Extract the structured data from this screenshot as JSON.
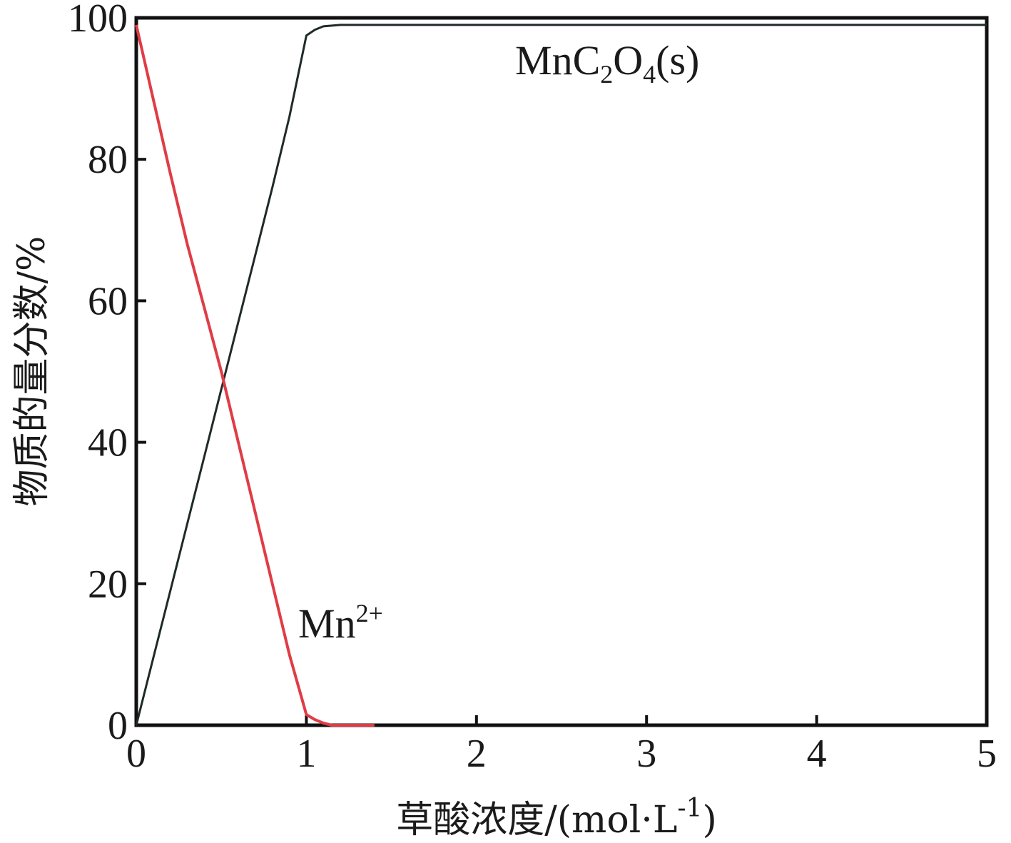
{
  "chart_data": {
    "type": "line",
    "xlabel_main": "草酸浓度/(mol·L",
    "xlabel_sup": "-1",
    "xlabel_end": ")",
    "ylabel": "物质的量分数/%",
    "xlim": [
      0,
      5
    ],
    "ylim": [
      0,
      100
    ],
    "x_ticks": [
      "0",
      "1",
      "2",
      "3",
      "4",
      "5"
    ],
    "y_ticks": [
      "0",
      "20",
      "40",
      "60",
      "80",
      "100"
    ],
    "grid": false,
    "series": [
      {
        "name": "MnC2O4(s)",
        "color": "#1f2a2a",
        "x": [
          0,
          0.1,
          0.2,
          0.3,
          0.4,
          0.5,
          0.6,
          0.7,
          0.8,
          0.9,
          1.0,
          1.05,
          1.1,
          1.2,
          1.3,
          2,
          3,
          4,
          5
        ],
        "y": [
          0,
          9.5,
          19,
          28.5,
          38,
          47.5,
          57,
          66.5,
          76,
          86,
          97.5,
          98.3,
          98.8,
          99.0,
          99.0,
          99.0,
          99.0,
          99.0,
          99.0
        ]
      },
      {
        "name": "Mn2+",
        "color": "#e03c46",
        "x": [
          0,
          0.1,
          0.2,
          0.3,
          0.4,
          0.5,
          0.6,
          0.7,
          0.8,
          0.9,
          1.0,
          1.05,
          1.1,
          1.15,
          1.2,
          1.3,
          1.4
        ],
        "y": [
          99,
          88.5,
          78,
          68,
          59,
          50,
          40,
          30,
          20,
          10,
          1.5,
          0.8,
          0.3,
          0,
          0,
          0,
          0
        ]
      }
    ],
    "labels": {
      "mnc2o4": {
        "main": "MnC",
        "sub1": "2",
        "mid": "O",
        "sub2": "4",
        "end": "(s)"
      },
      "mn2": {
        "main": "Mn",
        "sup": "2+"
      }
    }
  }
}
